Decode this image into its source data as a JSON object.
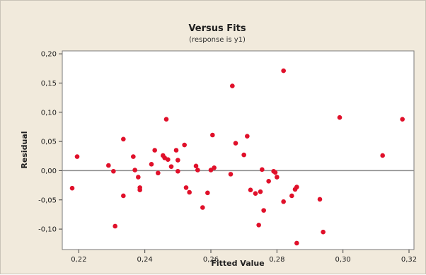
{
  "chart_data": {
    "type": "scatter",
    "title": "Versus Fits",
    "subtitle": "(response is y1)",
    "xlabel": "Fitted Value",
    "ylabel": "Residual",
    "xlim": [
      0.215,
      0.3215
    ],
    "ylim": [
      -0.135,
      0.205
    ],
    "x_ticks": [
      0.22,
      0.24,
      0.26,
      0.28,
      0.3,
      0.32
    ],
    "x_tick_labels": [
      "0,22",
      "0,24",
      "0,26",
      "0,28",
      "0,30",
      "0,32"
    ],
    "y_ticks": [
      -0.1,
      -0.05,
      0.0,
      0.05,
      0.1,
      0.15,
      0.2
    ],
    "y_tick_labels": [
      "-0,10",
      "-0,05",
      "0,00",
      "0,05",
      "0,10",
      "0,15",
      "0,20"
    ],
    "reference_line_y": 0.0,
    "grid": false,
    "marker_color": "#e0102a",
    "reference_line_color": "#8a8a8a",
    "plot_background": "#ffffff",
    "frame_background": "#f1eadc",
    "series": [
      {
        "points": [
          [
            0.218,
            -0.03
          ],
          [
            0.2195,
            0.024
          ],
          [
            0.229,
            0.009
          ],
          [
            0.2305,
            -0.001
          ],
          [
            0.231,
            -0.095
          ],
          [
            0.2335,
            0.054
          ],
          [
            0.2335,
            -0.043
          ],
          [
            0.2365,
            0.024
          ],
          [
            0.237,
            0.001
          ],
          [
            0.238,
            -0.011
          ],
          [
            0.2385,
            -0.029
          ],
          [
            0.2385,
            -0.033
          ],
          [
            0.242,
            0.011
          ],
          [
            0.243,
            0.035
          ],
          [
            0.244,
            -0.004
          ],
          [
            0.2455,
            0.026
          ],
          [
            0.246,
            0.022
          ],
          [
            0.2465,
            0.088
          ],
          [
            0.247,
            0.019
          ],
          [
            0.248,
            0.007
          ],
          [
            0.2495,
            0.035
          ],
          [
            0.25,
            -0.001
          ],
          [
            0.25,
            0.018
          ],
          [
            0.252,
            0.044
          ],
          [
            0.2525,
            -0.029
          ],
          [
            0.2535,
            -0.037
          ],
          [
            0.2555,
            0.008
          ],
          [
            0.256,
            0.001
          ],
          [
            0.2575,
            -0.063
          ],
          [
            0.259,
            -0.038
          ],
          [
            0.26,
            0.001
          ],
          [
            0.2605,
            0.061
          ],
          [
            0.261,
            0.005
          ],
          [
            0.266,
            -0.006
          ],
          [
            0.2665,
            0.145
          ],
          [
            0.2675,
            0.047
          ],
          [
            0.27,
            0.027
          ],
          [
            0.271,
            0.059
          ],
          [
            0.272,
            -0.033
          ],
          [
            0.2735,
            -0.039
          ],
          [
            0.2745,
            -0.093
          ],
          [
            0.275,
            -0.036
          ],
          [
            0.2755,
            0.002
          ],
          [
            0.276,
            -0.068
          ],
          [
            0.2775,
            -0.018
          ],
          [
            0.279,
            -0.001
          ],
          [
            0.2795,
            -0.003
          ],
          [
            0.28,
            -0.011
          ],
          [
            0.282,
            0.171
          ],
          [
            0.282,
            -0.053
          ],
          [
            0.2845,
            -0.043
          ],
          [
            0.2855,
            -0.032
          ],
          [
            0.286,
            -0.028
          ],
          [
            0.286,
            -0.124
          ],
          [
            0.293,
            -0.049
          ],
          [
            0.294,
            -0.105
          ],
          [
            0.299,
            0.091
          ],
          [
            0.312,
            0.026
          ],
          [
            0.318,
            0.088
          ]
        ]
      }
    ]
  }
}
